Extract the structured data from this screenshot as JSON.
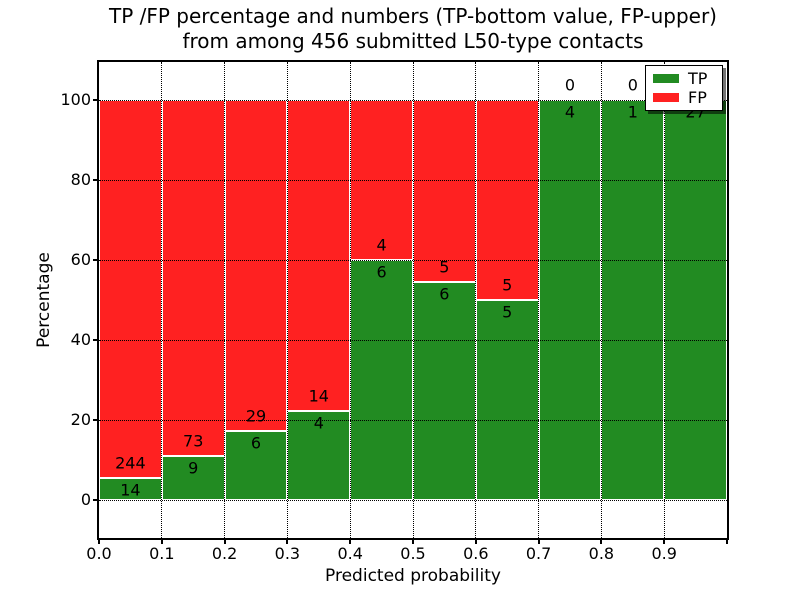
{
  "title": {
    "line1": "TP /FP percentage and numbers (TP-bottom value, FP-upper)",
    "line2": "from among 456 submitted L50-type contacts"
  },
  "axes": {
    "xlabel": "Predicted probability",
    "ylabel": "Percentage",
    "x_tick_labels": [
      "0.0",
      "0.1",
      "0.2",
      "0.3",
      "0.4",
      "0.5",
      "0.6",
      "0.7",
      "0.8",
      "0.9"
    ],
    "y_tick_values": [
      0,
      20,
      40,
      60,
      80,
      100
    ]
  },
  "legend": {
    "items": [
      {
        "label": "TP",
        "color": "#228B22"
      },
      {
        "label": "FP",
        "color": "#FF2121"
      }
    ]
  },
  "chart_data": {
    "type": "bar",
    "stacked": true,
    "normalized_to_percent": true,
    "title": "TP /FP percentage and numbers (TP-bottom value, FP-upper) from among 456 submitted L50-type contacts",
    "xlabel": "Predicted probability",
    "ylabel": "Percentage",
    "total_contacts": 456,
    "bin_edges": [
      0.0,
      0.1,
      0.2,
      0.3,
      0.4,
      0.5,
      0.6,
      0.7,
      0.8,
      0.9,
      1.0
    ],
    "series": [
      {
        "name": "TP",
        "color": "#228B22",
        "counts": [
          14,
          9,
          6,
          4,
          6,
          6,
          5,
          4,
          1,
          27
        ]
      },
      {
        "name": "FP",
        "color": "#FF2121",
        "counts": [
          244,
          73,
          29,
          14,
          4,
          5,
          5,
          0,
          0,
          0
        ]
      }
    ],
    "bar_annotation_rule": "TP count printed below the TP/FP boundary, FP count printed above it",
    "xlim": [
      0.0,
      1.0
    ],
    "ylim_percent": [
      0,
      100
    ],
    "y_ticks": [
      0,
      20,
      40,
      60,
      80,
      100
    ],
    "grid": {
      "style": "dotted",
      "color": "#000000"
    },
    "bar_edge_color": "#ffffff",
    "legend_position": "upper right"
  }
}
